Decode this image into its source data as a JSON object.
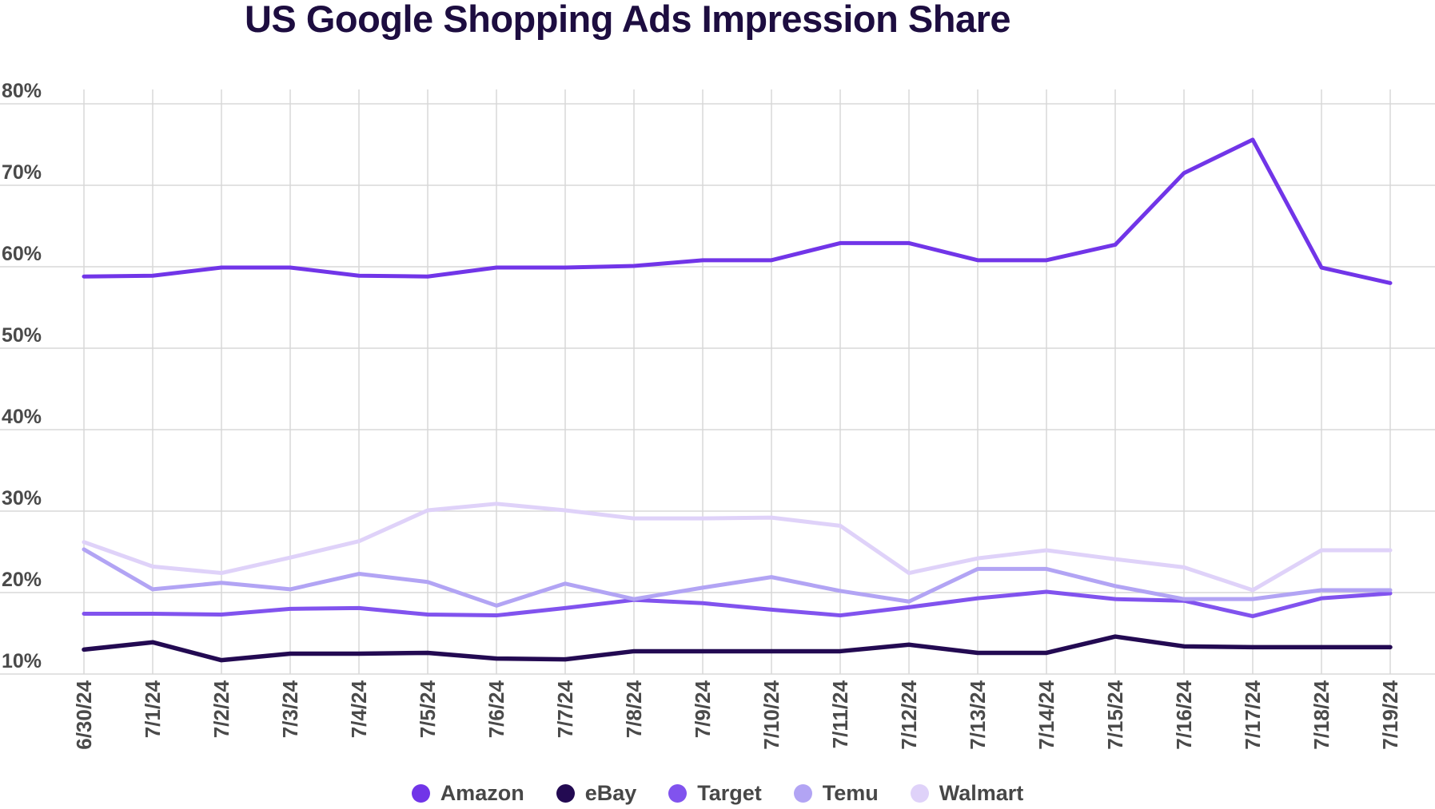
{
  "title": "US Google Shopping Ads Impression Share",
  "chart_data": {
    "type": "line",
    "title": "US Google Shopping Ads Impression Share",
    "categories": [
      "6/30/24",
      "7/1/24",
      "7/2/24",
      "7/3/24",
      "7/4/24",
      "7/5/24",
      "7/6/24",
      "7/7/24",
      "7/8/24",
      "7/9/24",
      "7/10/24",
      "7/11/24",
      "7/12/24",
      "7/13/24",
      "7/14/24",
      "7/15/24",
      "7/16/24",
      "7/17/24",
      "7/18/24",
      "7/19/24"
    ],
    "series": [
      {
        "name": "Amazon",
        "color": "#7135E8",
        "values": [
          58.8,
          58.9,
          59.9,
          59.9,
          58.9,
          58.8,
          59.9,
          59.9,
          60.1,
          60.8,
          60.8,
          62.9,
          62.9,
          60.8,
          60.8,
          62.7,
          71.5,
          75.6,
          59.9,
          58.0
        ]
      },
      {
        "name": "eBay",
        "color": "#230A52",
        "values": [
          13.0,
          13.9,
          11.7,
          12.5,
          12.5,
          12.6,
          11.9,
          11.8,
          12.8,
          12.8,
          12.8,
          12.8,
          13.6,
          12.6,
          12.6,
          14.6,
          13.4,
          13.3,
          13.3,
          13.3
        ]
      },
      {
        "name": "Target",
        "color": "#8153EE",
        "values": [
          17.4,
          17.4,
          17.3,
          18.0,
          18.1,
          17.3,
          17.2,
          18.1,
          19.1,
          18.7,
          17.9,
          17.2,
          18.2,
          19.3,
          20.1,
          19.2,
          19.0,
          17.1,
          19.3,
          19.9
        ]
      },
      {
        "name": "Temu",
        "color": "#B2A4F4",
        "values": [
          25.3,
          20.4,
          21.2,
          20.4,
          22.3,
          21.3,
          18.4,
          21.1,
          19.2,
          20.6,
          21.9,
          20.2,
          18.9,
          22.9,
          22.9,
          20.8,
          19.2,
          19.2,
          20.3,
          20.3
        ]
      },
      {
        "name": "Walmart",
        "color": "#DFD2F9",
        "values": [
          26.2,
          23.2,
          22.4,
          24.3,
          26.3,
          30.1,
          30.9,
          30.1,
          29.1,
          29.1,
          29.2,
          28.2,
          22.4,
          24.2,
          25.2,
          24.1,
          23.1,
          20.3,
          25.2,
          25.2
        ]
      }
    ],
    "ylim": [
      10,
      80
    ],
    "ytick_step": 10,
    "ytick_suffix": "%",
    "grid": true,
    "legend_position": "bottom",
    "x_label_rotation": -90
  },
  "colors": {
    "title": "#1D0D40",
    "axis_label": "#4A4A4A",
    "grid": "#D8D8D8",
    "background": "#FFFFFF"
  }
}
